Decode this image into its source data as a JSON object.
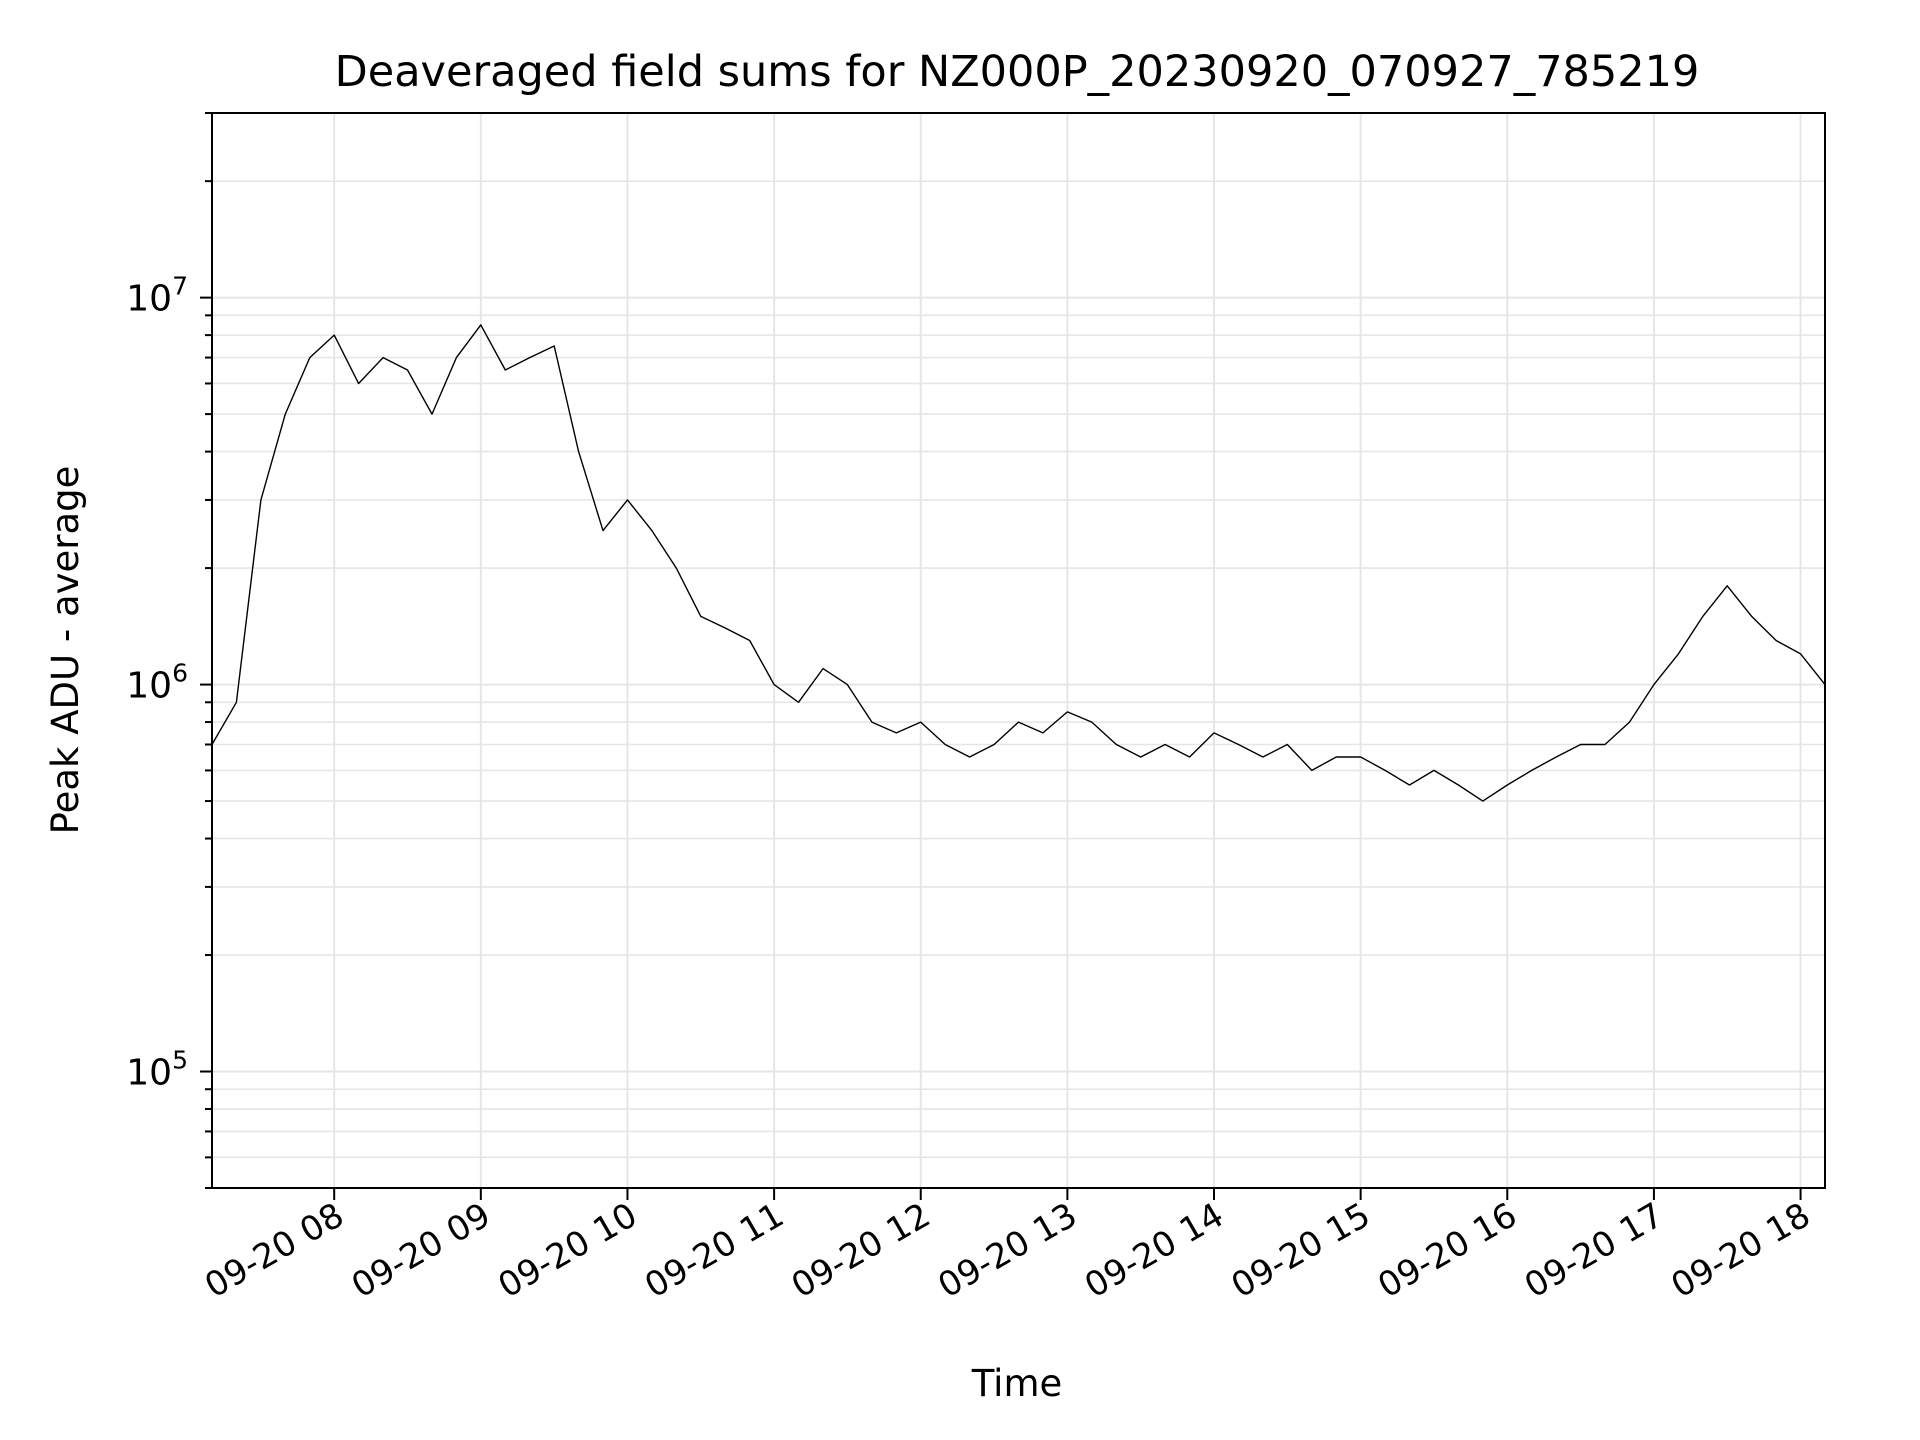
{
  "chart_data": {
    "type": "line",
    "title": "Deaveraged field sums for NZ000P_20230920_070927_785219",
    "xlabel": "Time",
    "ylabel": "Peak ADU - average",
    "y_scale": "log",
    "ylim": [
      50000,
      30000000
    ],
    "xlim": [
      "2023-09-20 07:10",
      "2023-09-20 18:10"
    ],
    "grid": true,
    "line_color": "#000000",
    "grid_color": "#e6e6e6",
    "x_ticks": [
      "09-20 08",
      "09-20 09",
      "09-20 10",
      "09-20 11",
      "09-20 12",
      "09-20 13",
      "09-20 14",
      "09-20 15",
      "09-20 16",
      "09-20 17",
      "09-20 18"
    ],
    "x_tick_times": [
      "2023-09-20 08:00",
      "2023-09-20 09:00",
      "2023-09-20 10:00",
      "2023-09-20 11:00",
      "2023-09-20 12:00",
      "2023-09-20 13:00",
      "2023-09-20 14:00",
      "2023-09-20 15:00",
      "2023-09-20 16:00",
      "2023-09-20 17:00",
      "2023-09-20 18:00"
    ],
    "y_ticks": [
      {
        "base": "10",
        "exp": "5",
        "value": 100000
      },
      {
        "base": "10",
        "exp": "6",
        "value": 1000000
      },
      {
        "base": "10",
        "exp": "7",
        "value": 10000000
      }
    ],
    "series": [
      {
        "x": [
          "2023-09-20 07:10",
          "2023-09-20 07:20",
          "2023-09-20 07:30",
          "2023-09-20 07:40",
          "2023-09-20 07:50",
          "2023-09-20 08:00",
          "2023-09-20 08:10",
          "2023-09-20 08:20",
          "2023-09-20 08:30",
          "2023-09-20 08:40",
          "2023-09-20 08:50",
          "2023-09-20 09:00",
          "2023-09-20 09:10",
          "2023-09-20 09:20",
          "2023-09-20 09:30",
          "2023-09-20 09:40",
          "2023-09-20 09:50",
          "2023-09-20 10:00",
          "2023-09-20 10:10",
          "2023-09-20 10:20",
          "2023-09-20 10:30",
          "2023-09-20 10:40",
          "2023-09-20 10:50",
          "2023-09-20 11:00",
          "2023-09-20 11:10",
          "2023-09-20 11:20",
          "2023-09-20 11:30",
          "2023-09-20 11:40",
          "2023-09-20 11:50",
          "2023-09-20 12:00",
          "2023-09-20 12:10",
          "2023-09-20 12:20",
          "2023-09-20 12:30",
          "2023-09-20 12:40",
          "2023-09-20 12:50",
          "2023-09-20 13:00",
          "2023-09-20 13:10",
          "2023-09-20 13:20",
          "2023-09-20 13:30",
          "2023-09-20 13:40",
          "2023-09-20 13:50",
          "2023-09-20 14:00",
          "2023-09-20 14:10",
          "2023-09-20 14:20",
          "2023-09-20 14:30",
          "2023-09-20 14:40",
          "2023-09-20 14:50",
          "2023-09-20 15:00",
          "2023-09-20 15:10",
          "2023-09-20 15:20",
          "2023-09-20 15:30",
          "2023-09-20 15:40",
          "2023-09-20 15:50",
          "2023-09-20 16:00",
          "2023-09-20 16:10",
          "2023-09-20 16:20",
          "2023-09-20 16:30",
          "2023-09-20 16:40",
          "2023-09-20 16:50",
          "2023-09-20 17:00",
          "2023-09-20 17:10",
          "2023-09-20 17:20",
          "2023-09-20 17:30",
          "2023-09-20 17:40",
          "2023-09-20 17:50",
          "2023-09-20 18:00",
          "2023-09-20 18:10"
        ],
        "y": [
          700000,
          900000,
          3000000,
          5000000,
          7000000,
          8000000,
          6000000,
          7000000,
          6500000,
          5000000,
          7000000,
          8500000,
          6500000,
          7000000,
          7500000,
          4000000,
          2500000,
          3000000,
          2500000,
          2000000,
          1500000,
          1400000,
          1300000,
          1000000,
          900000,
          1100000,
          1000000,
          800000,
          750000,
          800000,
          700000,
          650000,
          700000,
          800000,
          750000,
          850000,
          800000,
          700000,
          650000,
          700000,
          650000,
          750000,
          700000,
          650000,
          700000,
          600000,
          650000,
          650000,
          600000,
          550000,
          600000,
          550000,
          500000,
          550000,
          600000,
          650000,
          700000,
          700000,
          800000,
          1000000,
          1200000,
          1500000,
          1800000,
          1500000,
          1300000,
          1200000,
          1000000
        ]
      }
    ]
  }
}
